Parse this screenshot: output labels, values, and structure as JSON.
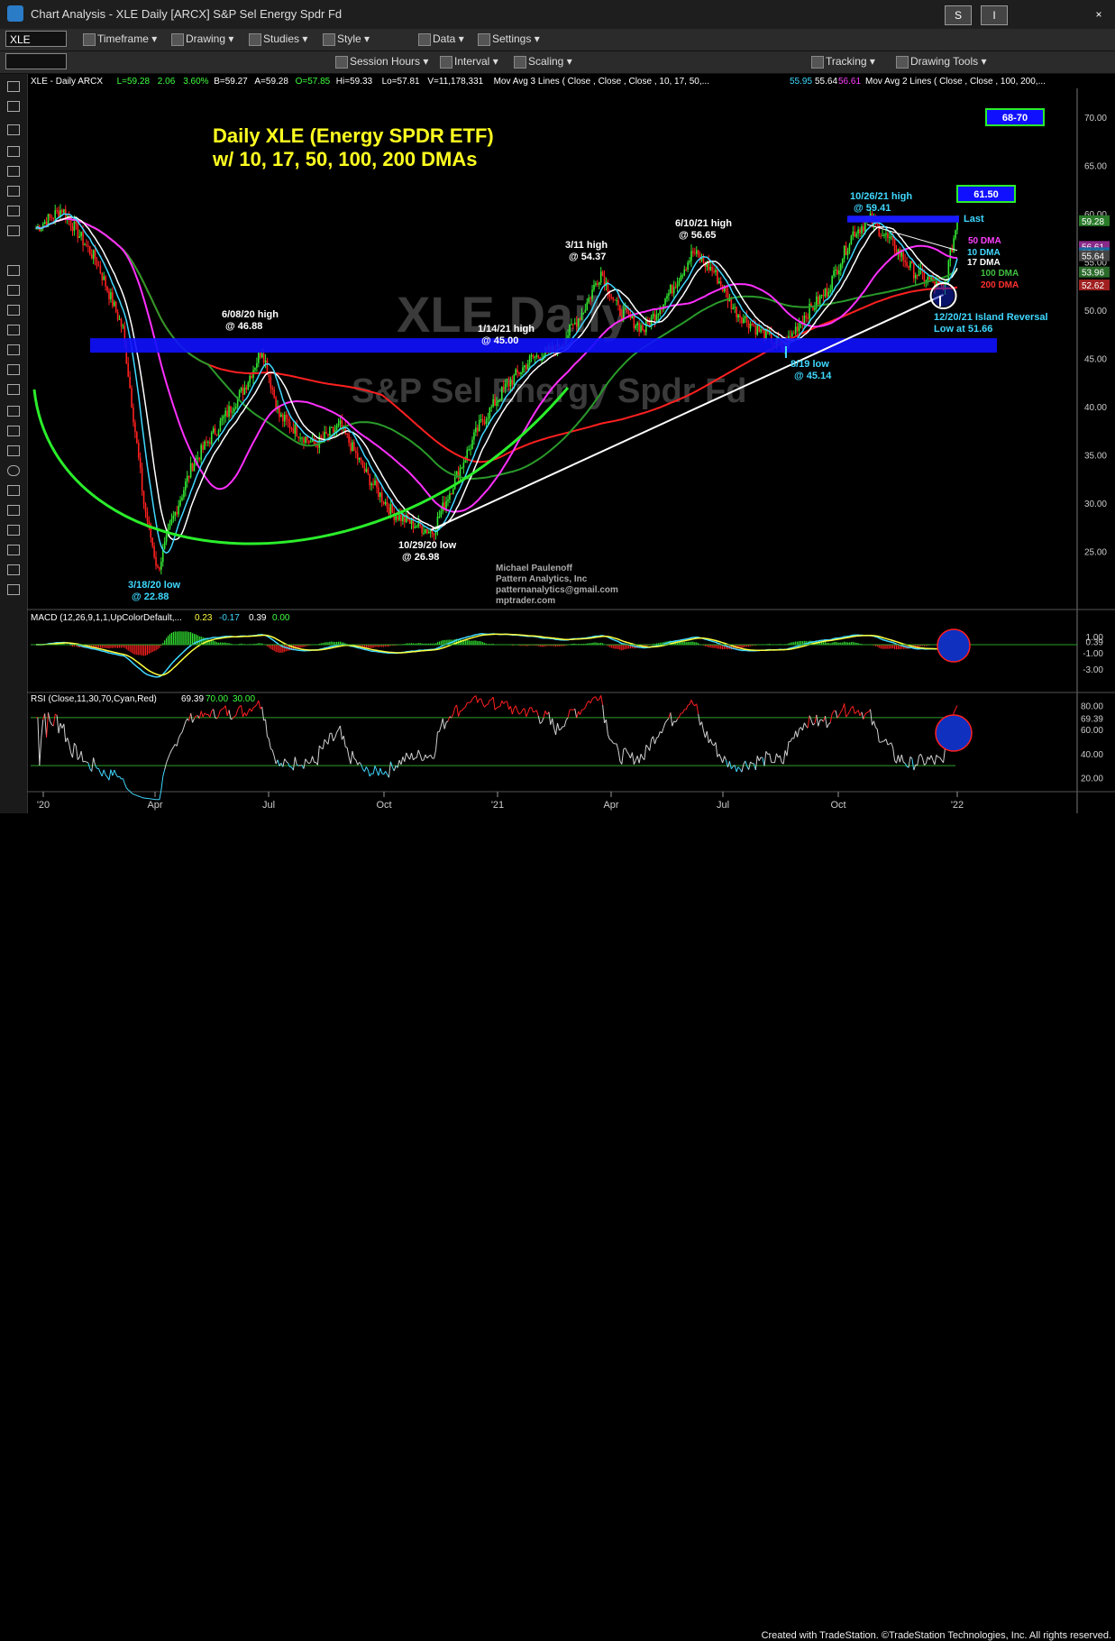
{
  "window": {
    "title": "Chart Analysis - XLE Daily [ARCX] S&P Sel Energy Spdr Fd",
    "symbol": "XLE",
    "btn_s": "S",
    "btn_i": "I",
    "btn_close": "×"
  },
  "toolbar1": [
    "Timeframe",
    "Drawing",
    "Studies",
    "Style",
    "Data",
    "Settings"
  ],
  "toolbar2": [
    "Session Hours",
    "Interval",
    "Scaling",
    "Tracking",
    "Drawing Tools"
  ],
  "header_line": {
    "label": "XLE - Daily ARCX",
    "last": "L=59.28",
    "chg": "2.06",
    "pct": "3.60%",
    "bid": "B=59.27",
    "ask": "A=59.28",
    "open": "O=57.85",
    "high": "Hi=59.33",
    "low": "Lo=57.81",
    "vol": "V=11,178,331",
    "mova3": "Mov Avg 3 Lines (   Close ,   Close ,   Close , 10, 17, 50,...",
    "mova3_vals": [
      "55.95",
      "55.64",
      "56.61"
    ],
    "mova2": "Mov Avg 2 Lines (        Close ,      Close ,  100,  200,..."
  },
  "chart_data": {
    "type": "candlestick",
    "title": "Daily XLE (Energy SPDR ETF)",
    "subtitle": "w/ 10, 17, 50, 100, 200 DMAs",
    "watermark1": "XLE Daily",
    "watermark2": "S&P Sel Energy Spdr Fd",
    "x_ticks": [
      "'20",
      "Apr",
      "Jul",
      "Oct",
      "'21",
      "Apr",
      "Jul",
      "Oct",
      "'22"
    ],
    "y_ticks": [
      "70.00",
      "65.00",
      "60.00",
      "55.00",
      "50.00",
      "45.00",
      "40.00",
      "35.00",
      "30.00",
      "25.00"
    ],
    "ylim": [
      20,
      73
    ],
    "price_anchors": [
      [
        0,
        58.5
      ],
      [
        15,
        60.5
      ],
      [
        35,
        55
      ],
      [
        50,
        48
      ],
      [
        62,
        30
      ],
      [
        70,
        23
      ],
      [
        78,
        28
      ],
      [
        90,
        34
      ],
      [
        105,
        38
      ],
      [
        120,
        42
      ],
      [
        130,
        46
      ],
      [
        140,
        39
      ],
      [
        160,
        36
      ],
      [
        175,
        38
      ],
      [
        190,
        33
      ],
      [
        205,
        29
      ],
      [
        215,
        28
      ],
      [
        228,
        27
      ],
      [
        240,
        32
      ],
      [
        255,
        38
      ],
      [
        270,
        42
      ],
      [
        285,
        45
      ],
      [
        300,
        46
      ],
      [
        315,
        50
      ],
      [
        325,
        54
      ],
      [
        335,
        50
      ],
      [
        350,
        48
      ],
      [
        365,
        52
      ],
      [
        378,
        56
      ],
      [
        390,
        54
      ],
      [
        402,
        50
      ],
      [
        415,
        48
      ],
      [
        430,
        46
      ],
      [
        440,
        49
      ],
      [
        455,
        52
      ],
      [
        470,
        58
      ],
      [
        480,
        59.4
      ],
      [
        492,
        57
      ],
      [
        505,
        54
      ],
      [
        515,
        53
      ],
      [
        522,
        52
      ],
      [
        528,
        57.5
      ],
      [
        530,
        59.28
      ]
    ],
    "annotations": [
      {
        "text": "6/08/20 high",
        "text2": "@ 46.88",
        "color": "#ffffff"
      },
      {
        "text": "1/14/21 high",
        "text2": "@ 45.00",
        "color": "#ffffff"
      },
      {
        "text": "3/11 high",
        "text2": "@ 54.37",
        "color": "#ffffff"
      },
      {
        "text": "6/10/21 high",
        "text2": "@ 56.65",
        "color": "#ffffff"
      },
      {
        "text": "10/26/21 high",
        "text2": "@ 59.41",
        "color": "#3fd8ff"
      },
      {
        "text": "8/19 low",
        "text2": "@ 45.14",
        "color": "#3fd8ff"
      },
      {
        "text": "12/20/21 Island Reversal",
        "text2": "Low at 51.66",
        "color": "#3fd8ff"
      },
      {
        "text": "3/18/20 low",
        "text2": "@ 22.88",
        "color": "#3fd8ff"
      },
      {
        "text": "10/29/20 low",
        "text2": "@ 26.98",
        "color": "#ffffff"
      }
    ],
    "target_boxes": [
      "68-70",
      "61.50"
    ],
    "last_label": "Last",
    "price_tags": {
      "last": "59.28",
      "t1": "56.61",
      "t2": "55.95",
      "t3": "55.64",
      "dma100": "53.96",
      "dma200": "52.62"
    },
    "dma_labels": [
      {
        "text": "50 DMA",
        "color": "#ff40ff"
      },
      {
        "text": "10 DMA",
        "color": "#40d8ff"
      },
      {
        "text": "17 DMA",
        "color": "#ffffff"
      },
      {
        "text": "100 DMA",
        "color": "#40c040"
      },
      {
        "text": "200 DMA",
        "color": "#ff3030"
      }
    ],
    "author": [
      "Michael Paulenoff",
      "Pattern Analytics, Inc",
      "patternanalytics@gmail.com",
      "mptrader.com"
    ],
    "macd": {
      "label": "MACD (12,26,9,1,1,UpColorDefault,...",
      "v1": "0.23",
      "v2": "-0.17",
      "v3": "0.39",
      "v4": "0.00",
      "ticks": [
        "1.00",
        "0.39",
        "-1.00",
        "-3.00"
      ]
    },
    "rsi": {
      "label": "RSI (Close,11,30,70,Cyan,Red)",
      "v1": "69.39",
      "v2": "70.00",
      "v3": "30.00",
      "ticks": [
        "80.00",
        "69.39",
        "60.00",
        "40.00",
        "20.00"
      ]
    }
  },
  "footer": "Created with TradeStation. ©TradeStation Technologies, Inc. All rights reserved."
}
